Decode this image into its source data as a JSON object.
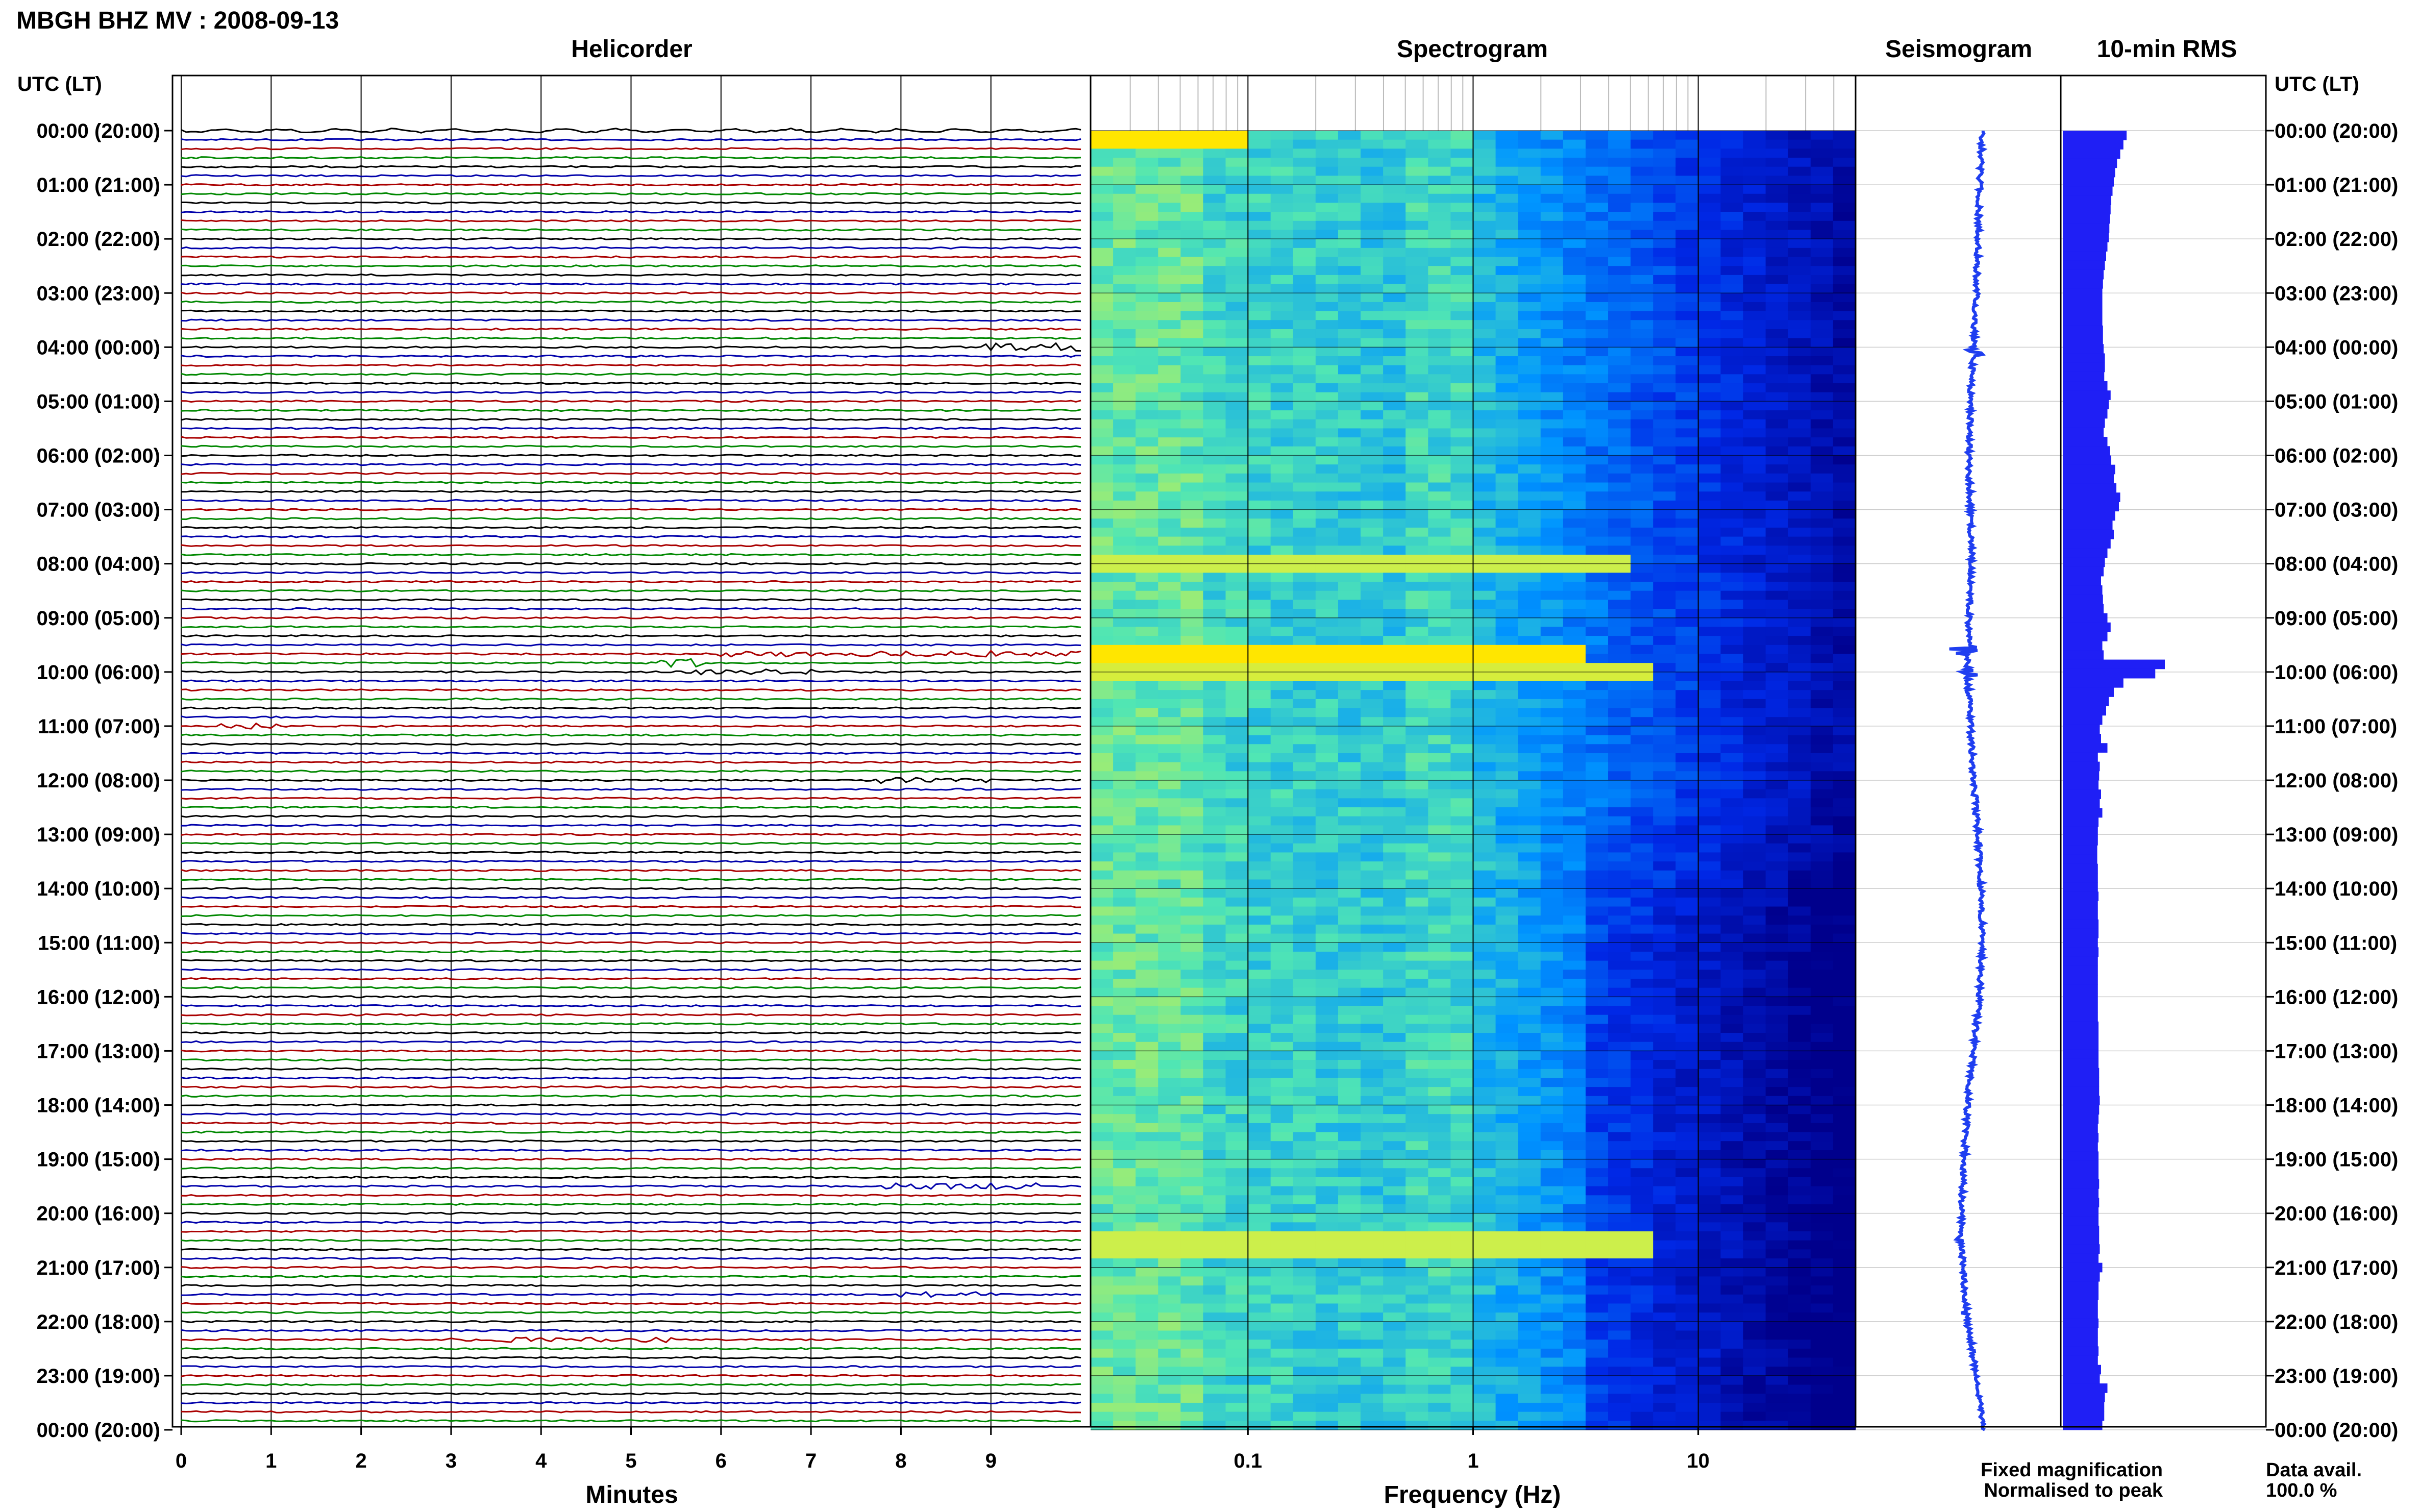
{
  "header": {
    "station_title": "MBGH BHZ MV : 2008-09-13"
  },
  "panels": {
    "helicorder": "Helicorder",
    "spectrogram": "Spectrogram",
    "seismogram": "Seismogram",
    "rms": "10-min RMS"
  },
  "axis_headers": {
    "left": "UTC (LT)",
    "right": "UTC (LT)"
  },
  "x_axes": {
    "helicorder_label": "Minutes",
    "helicorder_ticks": [
      "0",
      "1",
      "2",
      "3",
      "4",
      "5",
      "6",
      "7",
      "8",
      "9"
    ],
    "spectrogram_label": "Frequency (Hz)",
    "spectrogram_ticks": [
      "0.1",
      "1",
      "10"
    ]
  },
  "legend": {
    "fixed": "Fixed magnification",
    "normalised": "Normalised to peak",
    "fixed_color": "#1010ee",
    "normalised_color": "#ee1010"
  },
  "availability": {
    "label": "Data avail.",
    "value": "100.0 %"
  },
  "colors": {
    "trace_cycle": [
      "#000000",
      "#0000aa",
      "#aa0000",
      "#008800"
    ],
    "seismogram": "#1f3ef0",
    "rms_bar": "#1f1ff5"
  },
  "chart_data": [
    {
      "type": "line",
      "title": "Helicorder",
      "xlabel": "Minutes",
      "xlim": [
        0,
        10
      ],
      "x_ticks": [
        0,
        1,
        2,
        3,
        4,
        5,
        6,
        7,
        8,
        9
      ],
      "rows_per_hour": 6,
      "hours": 24,
      "y_tick_labels": [
        "00:00 (20:00)",
        "01:00 (21:00)",
        "02:00 (22:00)",
        "03:00 (23:00)",
        "04:00 (00:00)",
        "05:00 (01:00)",
        "06:00 (02:00)",
        "07:00 (03:00)",
        "08:00 (04:00)",
        "09:00 (05:00)",
        "10:00 (06:00)",
        "11:00 (07:00)",
        "12:00 (08:00)",
        "13:00 (09:00)",
        "14:00 (10:00)",
        "15:00 (11:00)",
        "16:00 (12:00)",
        "17:00 (13:00)",
        "18:00 (14:00)",
        "19:00 (15:00)",
        "20:00 (16:00)",
        "21:00 (17:00)",
        "22:00 (18:00)",
        "23:00 (19:00)",
        "00:00 (20:00)"
      ],
      "events": [
        {
          "row": 24,
          "start_min": 8.9,
          "end_min": 10.0,
          "amp": 0.45
        },
        {
          "row": 58,
          "start_min": 6.0,
          "end_min": 10.0,
          "amp": 0.35
        },
        {
          "row": 59,
          "start_min": 5.3,
          "end_min": 5.8,
          "amp": 0.6
        },
        {
          "row": 60,
          "start_min": 5.5,
          "end_min": 7.0,
          "amp": 0.3
        },
        {
          "row": 66,
          "start_min": 0.4,
          "end_min": 1.2,
          "amp": 0.4
        },
        {
          "row": 72,
          "start_min": 7.7,
          "end_min": 9.0,
          "amp": 0.35
        },
        {
          "row": 117,
          "start_min": 7.8,
          "end_min": 9.6,
          "amp": 0.4
        },
        {
          "row": 129,
          "start_min": 8.0,
          "end_min": 9.0,
          "amp": 0.3
        },
        {
          "row": 134,
          "start_min": 3.0,
          "end_min": 5.5,
          "amp": 0.35
        }
      ]
    },
    {
      "type": "heatmap",
      "title": "Spectrogram",
      "xlabel": "Frequency (Hz)",
      "x_scale": "log",
      "xlim": [
        0.02,
        50
      ],
      "x_ticks": [
        0.1,
        1,
        10
      ],
      "energy_bursts": [
        {
          "time_h": 0.1,
          "f_max": 0.1,
          "level": 1.0
        },
        {
          "time_h": 9.6,
          "f_max": 3.0,
          "level": 1.0
        },
        {
          "time_h": 9.9,
          "f_max": 7.0,
          "level": 0.6
        },
        {
          "time_h": 7.9,
          "f_max": 5.0,
          "level": 0.5
        },
        {
          "time_h": 20.5,
          "f_max": 6.0,
          "level": 0.5
        }
      ]
    },
    {
      "type": "line",
      "title": "Seismogram",
      "hours": 24,
      "offsets": [
        0.5,
        0.4,
        0.35,
        0.3,
        0.2,
        0.1,
        0.05,
        0.1,
        0.15,
        0.05,
        0.0,
        0.1,
        0.2,
        0.35,
        0.45,
        0.5,
        0.4,
        0.2,
        0.0,
        -0.1,
        -0.2,
        -0.15,
        0.0,
        0.3,
        0.5
      ],
      "spikes": [
        {
          "time_h": 9.6,
          "amp": 1.0
        },
        {
          "time_h": 20.5,
          "amp": 0.7
        },
        {
          "time_h": 10.0,
          "amp": 0.5
        },
        {
          "time_h": 4.1,
          "amp": 0.4
        },
        {
          "time_h": 21.8,
          "amp": 0.35
        }
      ]
    },
    {
      "type": "bar",
      "title": "10-min RMS",
      "orientation": "horizontal",
      "bin_minutes": 10,
      "values": [
        1.0,
        0.95,
        0.9,
        0.85,
        0.82,
        0.8,
        0.78,
        0.76,
        0.75,
        0.74,
        0.73,
        0.72,
        0.7,
        0.68,
        0.66,
        0.64,
        0.63,
        0.62,
        0.62,
        0.62,
        0.62,
        0.63,
        0.63,
        0.64,
        0.66,
        0.66,
        0.65,
        0.7,
        0.75,
        0.72,
        0.7,
        0.66,
        0.64,
        0.7,
        0.74,
        0.76,
        0.82,
        0.8,
        0.84,
        0.9,
        0.88,
        0.82,
        0.78,
        0.8,
        0.75,
        0.7,
        0.66,
        0.64,
        0.6,
        0.62,
        0.63,
        0.64,
        0.7,
        0.75,
        0.7,
        0.62,
        0.64,
        1.6,
        1.45,
        0.95,
        0.8,
        0.72,
        0.68,
        0.62,
        0.58,
        0.6,
        0.7,
        0.55,
        0.58,
        0.57,
        0.56,
        0.6,
        0.58,
        0.62,
        0.56,
        0.55,
        0.55,
        0.54,
        0.54,
        0.55,
        0.55,
        0.55,
        0.56,
        0.55,
        0.55,
        0.56,
        0.56,
        0.55,
        0.56,
        0.55,
        0.55,
        0.55,
        0.55,
        0.55,
        0.55,
        0.55,
        0.56,
        0.56,
        0.56,
        0.56,
        0.56,
        0.57,
        0.57,
        0.57,
        0.58,
        0.57,
        0.56,
        0.55,
        0.56,
        0.55,
        0.56,
        0.56,
        0.56,
        0.57,
        0.56,
        0.57,
        0.56,
        0.56,
        0.57,
        0.57,
        0.58,
        0.56,
        0.62,
        0.58,
        0.56,
        0.56,
        0.55,
        0.55,
        0.56,
        0.55,
        0.55,
        0.56,
        0.55,
        0.6,
        0.58,
        0.7,
        0.66,
        0.65,
        0.65,
        0.62
      ]
    }
  ]
}
